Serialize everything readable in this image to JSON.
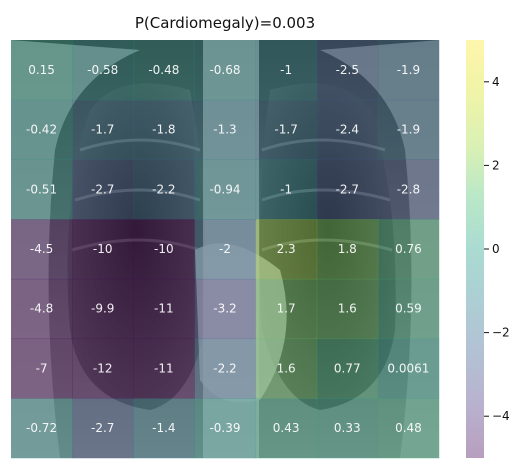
{
  "chart_data": {
    "type": "heatmap",
    "title": "P(Cardiomegaly)=0.003",
    "background": "chest x-ray (grayscale radiograph)",
    "colormap": "viridis",
    "cell_opacity": 0.38,
    "grid": false,
    "rows": 7,
    "cols": 7,
    "values": [
      [
        0.15,
        -0.58,
        -0.48,
        -0.68,
        -1,
        -2.5,
        -1.9
      ],
      [
        -0.42,
        -1.7,
        -1.8,
        -1.3,
        -1.7,
        -2.4,
        -1.9
      ],
      [
        -0.51,
        -2.7,
        -2.2,
        -0.94,
        -1,
        -2.7,
        -2.8
      ],
      [
        -4.5,
        -10,
        -10,
        -2,
        2.3,
        1.8,
        0.76
      ],
      [
        -4.8,
        -9.9,
        -11,
        -3.2,
        1.7,
        1.6,
        0.59
      ],
      [
        -7,
        -12,
        -11,
        -2.2,
        1.6,
        0.77,
        0.0061
      ],
      [
        -0.72,
        -2.7,
        -1.4,
        -0.39,
        0.43,
        0.33,
        0.48
      ]
    ],
    "labels": [
      [
        "0.15",
        "-0.58",
        "-0.48",
        "-0.68",
        "-1",
        "-2.5",
        "-1.9"
      ],
      [
        "-0.42",
        "-1.7",
        "-1.8",
        "-1.3",
        "-1.7",
        "-2.4",
        "-1.9"
      ],
      [
        "-0.51",
        "-2.7",
        "-2.2",
        "-0.94",
        "-1",
        "-2.7",
        "-2.8"
      ],
      [
        "-4.5",
        "-10",
        "-10",
        "-2",
        "2.3",
        "1.8",
        "0.76"
      ],
      [
        "-4.8",
        "-9.9",
        "-11",
        "-3.2",
        "1.7",
        "1.6",
        "0.59"
      ],
      [
        "-7",
        "-12",
        "-11",
        "-2.2",
        "1.6",
        "0.77",
        "0.0061"
      ],
      [
        "-0.72",
        "-2.7",
        "-1.4",
        "-0.39",
        "0.43",
        "0.33",
        "0.48"
      ]
    ],
    "colorbar": {
      "vmin": -5,
      "vmax": 5,
      "ticks": [
        4,
        2,
        0,
        -2,
        -4
      ],
      "tick_labels": [
        "4",
        "2",
        "0",
        "−2",
        "−4"
      ]
    }
  }
}
